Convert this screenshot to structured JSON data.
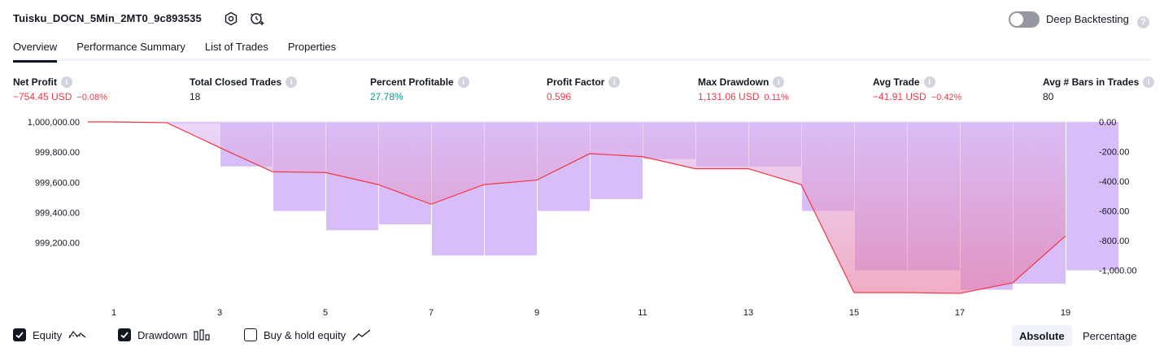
{
  "header": {
    "title": "Tuisku_DOCN_5Min_2MT0_9c893535",
    "deep_backtesting_label": "Deep Backtesting",
    "deep_backtesting_on": false
  },
  "tabs": [
    {
      "label": "Overview",
      "active": true
    },
    {
      "label": "Performance Summary",
      "active": false
    },
    {
      "label": "List of Trades",
      "active": false
    },
    {
      "label": "Properties",
      "active": false
    }
  ],
  "stats": [
    {
      "label": "Net Profit",
      "value": "−754.45 USD",
      "sub": "−0.08%",
      "tone": "neg"
    },
    {
      "label": "Total Closed Trades",
      "value": "18",
      "sub": "",
      "tone": "neu"
    },
    {
      "label": "Percent Profitable",
      "value": "27.78%",
      "sub": "",
      "tone": "pos"
    },
    {
      "label": "Profit Factor",
      "value": "0.596",
      "sub": "",
      "tone": "neg"
    },
    {
      "label": "Max Drawdown",
      "value": "1,131.06 USD",
      "sub": "0.11%",
      "tone": "neg"
    },
    {
      "label": "Avg Trade",
      "value": "−41.91 USD",
      "sub": "−0.42%",
      "tone": "neg"
    },
    {
      "label": "Avg # Bars in Trades",
      "value": "80",
      "sub": "",
      "tone": "neu"
    }
  ],
  "colors": {
    "equity_line": "#f23645",
    "drawdown_bar": "#d1b3f7",
    "drawdown_bar_deep": "#ea8bb9",
    "negative": "#f23645",
    "positive": "#089981",
    "grid": "#e0e3eb"
  },
  "chart_data": {
    "type": "line",
    "x": [
      1,
      2,
      3,
      4,
      5,
      6,
      7,
      8,
      9,
      10,
      11,
      12,
      13,
      14,
      15,
      16,
      17,
      18,
      19
    ],
    "x_tick_labels": [
      "1",
      "3",
      "5",
      "7",
      "9",
      "11",
      "13",
      "15",
      "17",
      "19"
    ],
    "series": [
      {
        "name": "Equity",
        "axis": "left",
        "values": [
          1000000.0,
          999995.0,
          999830.0,
          999670.0,
          999665.0,
          999585.0,
          999455.0,
          999585.0,
          999615.0,
          999790.0,
          999770.0,
          999690.0,
          999690.0,
          999585.0,
          998870.0,
          998870.0,
          998865.0,
          998935.0,
          999245.55
        ]
      },
      {
        "name": "Drawdown",
        "axis": "right",
        "type": "bar",
        "values": [
          -5.0,
          -10.0,
          -300.0,
          -600.0,
          -730.0,
          -690.0,
          -900.0,
          -900.0,
          -600.0,
          -520.0,
          -250.0,
          -300.0,
          -300.0,
          -600.0,
          -1000.0,
          -1000.0,
          -1131.06,
          -1090.0,
          -1000.0
        ]
      }
    ],
    "left_axis": {
      "ticks": [
        "1,000,000.00",
        "999,800.00",
        "999,600.00",
        "999,400.00",
        "999,200.00"
      ],
      "ylim": [
        998870.0,
        1000000.0
      ]
    },
    "right_axis": {
      "ticks": [
        "0.00",
        "-200.00",
        "-400.00",
        "-600.00",
        "-800.00",
        "-1,000.00"
      ],
      "ylim": [
        -1150.0,
        0.0
      ]
    }
  },
  "legend": {
    "equity_label": "Equity",
    "equity_on": true,
    "drawdown_label": "Drawdown",
    "drawdown_on": true,
    "buyhold_label": "Buy & hold equity",
    "buyhold_on": false
  },
  "modes": {
    "absolute_label": "Absolute",
    "percentage_label": "Percentage",
    "active": "Absolute"
  }
}
